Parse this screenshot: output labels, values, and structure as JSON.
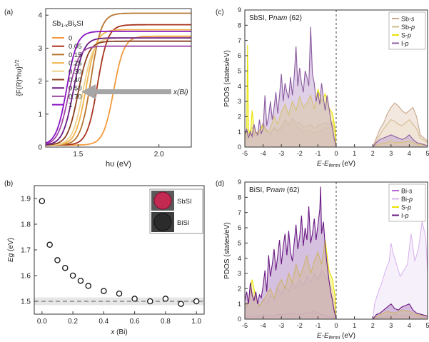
{
  "chart_data": [
    {
      "id": "a",
      "panel_label": "(a)",
      "type": "line",
      "xlabel": "hυ (eV)",
      "ylabel": "{F(R)*hυ}",
      "ylabel_sup": "1/2",
      "xlim": [
        1.3,
        2.2
      ],
      "ylim": [
        0,
        4.2
      ],
      "x_ticks": [
        1.5,
        2.0
      ],
      "x_tick_labels": [
        "1.5",
        "2.0"
      ],
      "y_ticks": [
        0,
        1,
        2,
        3,
        4
      ],
      "y_tick_labels": [
        "0",
        "1",
        "2",
        "3",
        "4"
      ],
      "legend_title": {
        "pre": "Sb",
        "sub1": "1-x",
        "mid": "Bi",
        "sub2": "x",
        "post": "SI"
      },
      "legend_position": "top-left",
      "annotation": "x(Bi)",
      "series": [
        {
          "name": "0",
          "color": "#f39a3c",
          "edge": 1.72,
          "plateau": 3.3
        },
        {
          "name": "0.05",
          "color": "#a8331f",
          "edge": 1.62,
          "plateau": 3.65
        },
        {
          "name": "0.15",
          "color": "#b7742c",
          "edge": 1.58,
          "plateau": 4.0
        },
        {
          "name": "0.25",
          "color": "#f0b24a",
          "edge": 1.55,
          "plateau": 3.5
        },
        {
          "name": "0.30",
          "color": "#eed08a",
          "edge": 1.53,
          "plateau": 3.25
        },
        {
          "name": "0.40",
          "color": "#8a3d1e",
          "edge": 1.5,
          "plateau": 3.15
        },
        {
          "name": "0.50",
          "color": "#6a1a84",
          "edge": 1.47,
          "plateau": 3.25
        },
        {
          "name": "0.70",
          "color": "#a047a6",
          "edge": 1.44,
          "plateau": 3.0
        },
        {
          "name": "1",
          "color": "#8b14c4",
          "edge": 1.43,
          "plateau": 3.45
        }
      ]
    },
    {
      "id": "b",
      "panel_label": "(b)",
      "type": "scatter",
      "xlabel": "x (Bi)",
      "ylabel": "Eg (eV)",
      "xlim": [
        -0.05,
        1.05
      ],
      "ylim": [
        1.45,
        1.95
      ],
      "x_ticks": [
        0.0,
        0.2,
        0.4,
        0.6,
        0.8,
        1.0
      ],
      "x_tick_labels": [
        "0.0",
        "0.2",
        "0.4",
        "0.6",
        "0.8",
        "1.0"
      ],
      "y_ticks": [
        1.5,
        1.6,
        1.7,
        1.8,
        1.9
      ],
      "y_tick_labels": [
        "1.5",
        "1.6",
        "1.7",
        "1.8",
        "1.9"
      ],
      "x": [
        0.0,
        0.05,
        0.1,
        0.15,
        0.2,
        0.25,
        0.3,
        0.4,
        0.5,
        0.6,
        0.7,
        0.8,
        0.9,
        1.0
      ],
      "y": [
        1.89,
        1.72,
        1.66,
        1.63,
        1.6,
        1.58,
        1.56,
        1.54,
        1.53,
        1.51,
        1.5,
        1.51,
        1.49,
        1.5
      ],
      "reference_line": 1.5,
      "reference_band": [
        1.485,
        1.515
      ],
      "inset_labels": [
        "SbSI",
        "BiSI"
      ]
    },
    {
      "id": "c",
      "panel_label": "(c)",
      "type": "area",
      "title": "SbSI, Pnam (62)",
      "title_pre": "SbSI, P",
      "title_italic": "nam",
      "title_post": " (62)",
      "xlabel_pre": "E-E",
      "xlabel_sub": "fermi",
      "xlabel_post": " (eV)",
      "ylabel": "PDOS (states/eV)",
      "xlim": [
        -5,
        5
      ],
      "ylim": [
        0,
        9
      ],
      "x_ticks": [
        -5,
        -4,
        -3,
        -2,
        -1,
        0,
        1,
        2,
        3,
        4,
        5
      ],
      "x_tick_labels": [
        "-5",
        "-4",
        "-3",
        "-2",
        "-1",
        "0",
        "1",
        "2",
        "3",
        "4",
        "5"
      ],
      "y_ticks": [
        0,
        1,
        2,
        3,
        4,
        5,
        6,
        7,
        8,
        9
      ],
      "y_tick_labels": [
        "0",
        "1",
        "2",
        "3",
        "4",
        "5",
        "6",
        "7",
        "8",
        "9"
      ],
      "fermi_line": 0,
      "legend_position": "top-right",
      "legend": [
        {
          "el": "Sb",
          "orb": "s",
          "color": "#c9a78a"
        },
        {
          "el": "Sb",
          "orb": "p",
          "color": "#d4bb8f"
        },
        {
          "el": "S",
          "orb": "p",
          "color": "#e9e300"
        },
        {
          "el": "I",
          "orb": "p",
          "color": "#8a5aa0"
        }
      ],
      "series": [
        {
          "name": "Sb-s",
          "color": "#c9a78a",
          "fill": "#e8d6c6",
          "x": [
            -5,
            -4.8,
            -4.6,
            -4.5,
            -4.4,
            -4.2,
            -4,
            -3.8,
            -3.6,
            -3.4,
            -3.2,
            -3,
            -2.8,
            -2.6,
            -2.4,
            -2.2,
            -2,
            -1.8,
            -1.6,
            -1.4,
            -1.2,
            -1,
            -0.8,
            -0.6,
            -0.4,
            -0.2,
            -0.05,
            0,
            2,
            2.2,
            2.4,
            2.6,
            2.8,
            3,
            3.2,
            3.4,
            3.6,
            3.8,
            4,
            4.2,
            4.4,
            4.6,
            5
          ],
          "y": [
            0.6,
            0.9,
            1.3,
            1.0,
            0.7,
            1.0,
            1.6,
            1.0,
            0.8,
            1.3,
            1.0,
            1.2,
            1.6,
            1.4,
            1.6,
            1.4,
            1.2,
            1.0,
            1.0,
            1.1,
            0.9,
            1.0,
            1.1,
            1.3,
            1.2,
            1.5,
            0.8,
            0,
            0,
            0.6,
            1.2,
            1.6,
            2.2,
            2.6,
            2.9,
            2.7,
            2.4,
            2.2,
            2.4,
            2.6,
            2.0,
            0.8,
            0.4
          ]
        },
        {
          "name": "Sb-p",
          "color": "#d4bb8f",
          "fill": "#efe2cf",
          "x": [
            -5,
            -4.8,
            -4.6,
            -4.4,
            -4.2,
            -4,
            -3.8,
            -3.6,
            -3.4,
            -3.2,
            -3,
            -2.8,
            -2.6,
            -2.4,
            -2.2,
            -2,
            -1.8,
            -1.6,
            -1.4,
            -1.2,
            -1,
            -0.8,
            -0.6,
            -0.4,
            -0.2,
            -0.05,
            0,
            2,
            2.2,
            2.4,
            2.6,
            2.8,
            3,
            3.2,
            3.4,
            3.6,
            3.8,
            4,
            4.2,
            4.4,
            4.6,
            5
          ],
          "y": [
            0.4,
            0.6,
            0.9,
            0.7,
            0.9,
            1.5,
            1.1,
            0.9,
            1.2,
            1.1,
            1.3,
            1.8,
            1.5,
            1.9,
            1.6,
            1.6,
            1.3,
            1.4,
            1.5,
            1.2,
            1.4,
            1.5,
            1.6,
            1.5,
            1.7,
            1.0,
            0,
            0,
            0.4,
            0.8,
            1.2,
            1.5,
            1.8,
            1.7,
            1.5,
            1.4,
            1.6,
            1.8,
            1.5,
            1.2,
            0.6,
            0.3
          ]
        },
        {
          "name": "S-p",
          "color": "#e9e300",
          "fill": "#f6f36a",
          "x": [
            -5,
            -4.9,
            -4.85,
            -4.8,
            -4.7,
            -4.6,
            -4.5,
            -4.4,
            -4.2,
            -4,
            -3.8,
            -3.6,
            -3.4,
            -3.2,
            -3,
            -2.8,
            -2.6,
            -2.4,
            -2.2,
            -2,
            -1.8,
            -1.6,
            -1.4,
            -1.2,
            -1,
            -0.8,
            -0.6,
            -0.4,
            -0.2,
            -0.05,
            0,
            2,
            2.4,
            2.8,
            3,
            3.2,
            3.6,
            4,
            4.4,
            5
          ],
          "y": [
            0.5,
            1.0,
            6.7,
            1.2,
            0.8,
            2.4,
            1.3,
            0.9,
            1.1,
            1.4,
            1.0,
            1.2,
            2.0,
            1.5,
            2.3,
            2.8,
            2.1,
            3.0,
            2.4,
            3.3,
            2.6,
            2.9,
            3.4,
            2.5,
            3.8,
            3.0,
            3.5,
            2.6,
            2.2,
            1.2,
            0,
            0,
            0.2,
            0.3,
            0.4,
            0.3,
            0.3,
            0.4,
            0.2,
            0.1
          ]
        },
        {
          "name": "I-p",
          "color": "#8a5aa0",
          "fill": "#c5a8d4",
          "x": [
            -5,
            -4.9,
            -4.8,
            -4.7,
            -4.6,
            -4.5,
            -4.4,
            -4.3,
            -4.2,
            -4.1,
            -4,
            -3.9,
            -3.8,
            -3.7,
            -3.6,
            -3.5,
            -3.4,
            -3.3,
            -3.2,
            -3.1,
            -3,
            -2.9,
            -2.8,
            -2.7,
            -2.6,
            -2.5,
            -2.4,
            -2.3,
            -2.2,
            -2.1,
            -2,
            -1.9,
            -1.8,
            -1.7,
            -1.6,
            -1.5,
            -1.4,
            -1.3,
            -1.2,
            -1.1,
            -1,
            -0.9,
            -0.8,
            -0.7,
            -0.6,
            -0.5,
            -0.4,
            -0.3,
            -0.2,
            -0.1,
            -0.03,
            0,
            2,
            2.2,
            2.4,
            2.6,
            2.8,
            3,
            3.2,
            3.4,
            3.6,
            3.8,
            4,
            4.2,
            4.4,
            5
          ],
          "y": [
            0.8,
            1.2,
            0.6,
            1.0,
            0.7,
            1.5,
            1.0,
            0.8,
            1.8,
            0.9,
            1.2,
            3.4,
            1.4,
            2.0,
            3.0,
            1.8,
            2.6,
            3.6,
            2.2,
            3.4,
            4.8,
            3.0,
            4.2,
            3.6,
            3.2,
            4.6,
            3.4,
            4.6,
            6.6,
            4.0,
            5.2,
            4.2,
            3.6,
            5.0,
            4.6,
            4.0,
            7.9,
            4.8,
            4.2,
            3.0,
            3.6,
            2.8,
            4.2,
            3.2,
            2.4,
            3.4,
            2.6,
            1.8,
            1.2,
            0.5,
            0.2,
            0,
            0,
            0.3,
            0.5,
            0.6,
            0.7,
            0.8,
            0.7,
            0.6,
            0.5,
            0.6,
            0.8,
            0.5,
            0.3,
            0.1
          ]
        }
      ]
    },
    {
      "id": "d",
      "panel_label": "(d)",
      "type": "area",
      "title": "BiSI, Pnam (62)",
      "title_pre": "BiSI, P",
      "title_italic": "nam",
      "title_post": " (62)",
      "xlabel_pre": "E-E",
      "xlabel_sub": "fermi",
      "xlabel_post": " (eV)",
      "ylabel": "PDOS (states/eV)",
      "xlim": [
        -5,
        5
      ],
      "ylim": [
        0,
        9
      ],
      "x_ticks": [
        -5,
        -4,
        -3,
        -2,
        -1,
        0,
        1,
        2,
        3,
        4,
        5
      ],
      "x_tick_labels": [
        "-5",
        "-4",
        "-3",
        "-2",
        "-1",
        "0",
        "1",
        "2",
        "3",
        "4",
        "5"
      ],
      "y_ticks": [
        0,
        1,
        2,
        3,
        4,
        5,
        6,
        7,
        8,
        9
      ],
      "y_tick_labels": [
        "0",
        "1",
        "2",
        "3",
        "4",
        "5",
        "6",
        "7",
        "8",
        "9"
      ],
      "fermi_line": 0,
      "legend_position": "top-right",
      "legend": [
        {
          "el": "Bi",
          "orb": "s",
          "color": "#b36bd0"
        },
        {
          "el": "Bi",
          "orb": "p",
          "color": "#d9b7ef"
        },
        {
          "el": "S",
          "orb": "p",
          "color": "#e9e300"
        },
        {
          "el": "I",
          "orb": "p",
          "color": "#6a1a84"
        }
      ],
      "series": [
        {
          "name": "Bi-s",
          "color": "#b36bd0",
          "fill": "#e3c8ef",
          "x": [
            -5,
            -4.6,
            -4.2,
            -4,
            -3.6,
            -3.2,
            -2.8,
            -2.4,
            -2,
            -1.6,
            -1.2,
            -0.8,
            -0.4,
            -0.05,
            0,
            2,
            2.4,
            2.8,
            3.2,
            3.6,
            4,
            4.4,
            5
          ],
          "y": [
            0.1,
            0.2,
            0.2,
            0.3,
            0.2,
            0.3,
            0.3,
            0.4,
            0.3,
            0.4,
            0.5,
            0.3,
            0.2,
            0.1,
            0,
            0,
            0.1,
            0.2,
            0.3,
            0.2,
            0.3,
            0.2,
            0.1
          ]
        },
        {
          "name": "Bi-p",
          "color": "#d9b7ef",
          "fill": "#efe3f7",
          "x": [
            -5,
            -4.8,
            -4.6,
            -4.4,
            -4.2,
            -4,
            -3.8,
            -3.6,
            -3.4,
            -3.2,
            -3,
            -2.8,
            -2.6,
            -2.4,
            -2.2,
            -2,
            -1.8,
            -1.6,
            -1.4,
            -1.2,
            -1,
            -0.8,
            -0.6,
            -0.4,
            -0.2,
            -0.05,
            0,
            2,
            2.1,
            2.3,
            2.5,
            2.7,
            2.9,
            3.0,
            3.1,
            3.3,
            3.5,
            3.7,
            3.9,
            4.1,
            4.3,
            4.5,
            4.7,
            4.9,
            5
          ],
          "y": [
            0.6,
            1.0,
            1.8,
            1.2,
            0.8,
            1.3,
            1.0,
            1.6,
            1.2,
            2.0,
            1.6,
            2.2,
            1.8,
            2.4,
            2.0,
            2.6,
            2.2,
            2.8,
            2.4,
            3.0,
            2.6,
            3.2,
            2.8,
            2.4,
            1.8,
            0.8,
            0,
            0,
            1.0,
            1.8,
            2.4,
            3.2,
            3.8,
            5.0,
            4.4,
            3.6,
            2.8,
            3.2,
            3.6,
            5.6,
            3.8,
            4.6,
            6.4,
            5.4,
            3.0
          ]
        },
        {
          "name": "S-p",
          "color": "#e9e300",
          "fill": "#f6f36a",
          "x": [
            -5,
            -4.8,
            -4.6,
            -4.4,
            -4.2,
            -4,
            -3.8,
            -3.6,
            -3.4,
            -3.2,
            -3,
            -2.8,
            -2.6,
            -2.4,
            -2.2,
            -2,
            -1.8,
            -1.6,
            -1.4,
            -1.2,
            -1,
            -0.8,
            -0.6,
            -0.4,
            -0.2,
            -0.05,
            0,
            2,
            2.4,
            2.8,
            3.2,
            3.6,
            4,
            4.4,
            5
          ],
          "y": [
            0.8,
            1.2,
            2.6,
            1.4,
            0.9,
            1.2,
            1.6,
            2.0,
            1.4,
            2.2,
            2.6,
            2.0,
            3.0,
            2.4,
            3.6,
            2.8,
            3.4,
            4.2,
            3.0,
            3.8,
            4.4,
            3.6,
            5.2,
            3.2,
            2.6,
            1.4,
            0,
            0,
            0.3,
            0.5,
            0.4,
            0.6,
            0.5,
            0.3,
            0.2
          ]
        },
        {
          "name": "I-p",
          "color": "#6a1a84",
          "fill": "#b48cc4",
          "x": [
            -5,
            -4.9,
            -4.8,
            -4.7,
            -4.6,
            -4.5,
            -4.4,
            -4.3,
            -4.2,
            -4.1,
            -4,
            -3.9,
            -3.8,
            -3.7,
            -3.6,
            -3.5,
            -3.4,
            -3.3,
            -3.2,
            -3.1,
            -3,
            -2.9,
            -2.8,
            -2.7,
            -2.6,
            -2.5,
            -2.4,
            -2.3,
            -2.2,
            -2.1,
            -2,
            -1.9,
            -1.8,
            -1.7,
            -1.6,
            -1.5,
            -1.4,
            -1.3,
            -1.2,
            -1.1,
            -1,
            -0.9,
            -0.85,
            -0.8,
            -0.7,
            -0.6,
            -0.5,
            -0.4,
            -0.3,
            -0.2,
            -0.1,
            -0.03,
            0,
            2,
            2.2,
            2.4,
            2.6,
            2.8,
            3,
            3.2,
            3.4,
            3.6,
            3.8,
            4,
            4.2,
            4.4,
            5
          ],
          "y": [
            1.2,
            1.8,
            1.0,
            2.4,
            1.6,
            1.2,
            1.8,
            1.0,
            1.6,
            1.4,
            2.2,
            3.2,
            1.8,
            4.2,
            2.8,
            3.6,
            4.6,
            3.2,
            4.2,
            5.2,
            3.6,
            4.8,
            5.6,
            4.2,
            5.8,
            4.4,
            3.8,
            5.0,
            6.2,
            4.6,
            5.4,
            6.8,
            4.8,
            6.0,
            5.2,
            7.4,
            5.0,
            5.6,
            6.6,
            5.2,
            6.2,
            7.2,
            8.7,
            5.6,
            6.4,
            4.8,
            3.6,
            2.6,
            1.8,
            1.2,
            0.5,
            0.2,
            0,
            0,
            0.3,
            0.4,
            0.6,
            0.8,
            1.0,
            0.7,
            0.6,
            0.8,
            0.9,
            1.0,
            0.6,
            0.4,
            0.2
          ]
        }
      ]
    }
  ]
}
